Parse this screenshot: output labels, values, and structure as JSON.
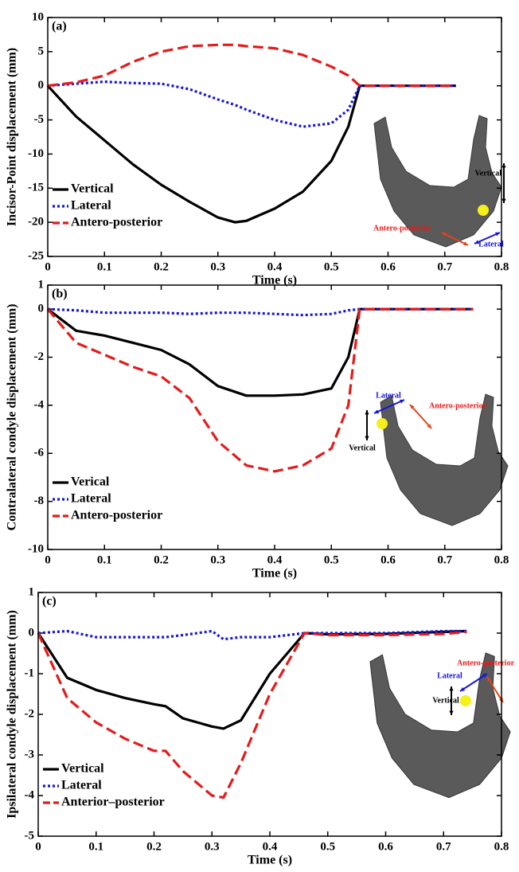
{
  "chart_data": [
    {
      "type": "line",
      "label": "(a)",
      "xlabel": "Time (s)",
      "ylabel": "Incisor-Point displacement (mm)",
      "xlim": [
        0,
        0.8
      ],
      "ylim": [
        -25,
        10
      ],
      "xticks": [
        0,
        0.1,
        0.2,
        0.3,
        0.4,
        0.5,
        0.6,
        0.7,
        0.8
      ],
      "yticks": [
        10,
        5,
        0,
        -5,
        -10,
        -15,
        -20,
        -25
      ],
      "x": [
        0,
        0.05,
        0.1,
        0.15,
        0.2,
        0.25,
        0.3,
        0.33,
        0.35,
        0.4,
        0.45,
        0.5,
        0.53,
        0.55,
        0.6,
        0.65,
        0.7,
        0.72
      ],
      "series": [
        {
          "name": "Vertical",
          "color": "#000000",
          "dash": "solid",
          "values": [
            0,
            -4.5,
            -8,
            -11.5,
            -14.5,
            -17,
            -19.3,
            -20,
            -19.8,
            -18,
            -15.5,
            -11,
            -6,
            0,
            0,
            0,
            0,
            0
          ]
        },
        {
          "name": "Lateral",
          "color": "#1515e0",
          "dash": "dotted",
          "values": [
            0,
            0.3,
            0.6,
            0.4,
            0.3,
            -0.5,
            -2,
            -2.8,
            -3.5,
            -5,
            -6,
            -5.5,
            -3.5,
            0,
            0,
            0,
            0,
            0
          ]
        },
        {
          "name": "Antero-posterior",
          "color": "#e51b1b",
          "dash": "dashed",
          "values": [
            0,
            0.5,
            1.5,
            3.5,
            5,
            5.8,
            6,
            6,
            5.8,
            5.5,
            4.5,
            2.8,
            1.5,
            0,
            0,
            0,
            0,
            0
          ]
        }
      ],
      "annotations": [
        {
          "text": "Vertical",
          "color": "#000000"
        },
        {
          "text": "Antero-posterior",
          "color": "#e51b1b"
        },
        {
          "text": "Lateral",
          "color": "#1515e0"
        }
      ]
    },
    {
      "type": "line",
      "label": "(b)",
      "xlabel": "Time (s)",
      "ylabel": "Contralateral condyle displacement (mm)",
      "xlim": [
        0,
        0.8
      ],
      "ylim": [
        -10,
        1
      ],
      "xticks": [
        0,
        0.1,
        0.2,
        0.3,
        0.4,
        0.5,
        0.6,
        0.7,
        0.8
      ],
      "yticks": [
        1,
        0,
        -2,
        -4,
        -6,
        -8,
        -10
      ],
      "x": [
        0,
        0.05,
        0.1,
        0.15,
        0.2,
        0.25,
        0.3,
        0.35,
        0.4,
        0.45,
        0.5,
        0.53,
        0.55,
        0.6,
        0.65,
        0.7,
        0.75
      ],
      "series": [
        {
          "name": "Verical",
          "color": "#000000",
          "dash": "solid",
          "values": [
            0,
            -0.9,
            -1.1,
            -1.4,
            -1.7,
            -2.3,
            -3.2,
            -3.6,
            -3.6,
            -3.55,
            -3.3,
            -2,
            0,
            0,
            0,
            0,
            0
          ]
        },
        {
          "name": "Lateral",
          "color": "#1515e0",
          "dash": "dotted",
          "values": [
            0,
            -0.05,
            -0.15,
            -0.15,
            -0.15,
            -0.2,
            -0.15,
            -0.15,
            -0.2,
            -0.25,
            -0.2,
            -0.05,
            0,
            0,
            0,
            0,
            0
          ]
        },
        {
          "name": "Antero-posterior",
          "color": "#e51b1b",
          "dash": "dashed",
          "values": [
            0,
            -1.4,
            -1.9,
            -2.4,
            -2.8,
            -3.7,
            -5.5,
            -6.5,
            -6.75,
            -6.5,
            -5.8,
            -4,
            0,
            0,
            0,
            0,
            0
          ]
        }
      ],
      "annotations": [
        {
          "text": "Lateral",
          "color": "#1515e0"
        },
        {
          "text": "Antero-posterior",
          "color": "#e51b1b"
        },
        {
          "text": "Vertical",
          "color": "#000000"
        }
      ]
    },
    {
      "type": "line",
      "label": "(c)",
      "xlabel": "Time (s)",
      "ylabel": "Ipsilateral condyle displacement (mm)",
      "xlim": [
        0,
        0.8
      ],
      "ylim": [
        -5,
        1
      ],
      "xticks": [
        0,
        0.1,
        0.2,
        0.3,
        0.4,
        0.5,
        0.6,
        0.7,
        0.8
      ],
      "yticks": [
        1,
        0,
        -1,
        -2,
        -3,
        -4,
        -5
      ],
      "x": [
        0,
        0.05,
        0.1,
        0.15,
        0.2,
        0.22,
        0.25,
        0.3,
        0.32,
        0.35,
        0.4,
        0.46,
        0.5,
        0.6,
        0.7,
        0.74
      ],
      "series": [
        {
          "name": "Vertical",
          "color": "#000000",
          "dash": "solid",
          "values": [
            0,
            -1.1,
            -1.4,
            -1.6,
            -1.75,
            -1.8,
            -2.1,
            -2.3,
            -2.35,
            -2.15,
            -1.0,
            0,
            -0.03,
            -0.02,
            0.03,
            0.05
          ]
        },
        {
          "name": "Lateral",
          "color": "#1515e0",
          "dash": "dotted",
          "values": [
            0,
            0.05,
            -0.1,
            -0.1,
            -0.1,
            -0.1,
            -0.05,
            0.05,
            -0.15,
            -0.1,
            -0.1,
            0,
            0,
            0,
            0.05,
            0.05
          ]
        },
        {
          "name": "Anterior–posterior",
          "color": "#e51b1b",
          "dash": "dashed",
          "values": [
            0,
            -1.6,
            -2.2,
            -2.6,
            -2.9,
            -2.9,
            -3.4,
            -4.0,
            -4.05,
            -3.2,
            -1.5,
            0,
            -0.05,
            -0.05,
            -0.02,
            0.03
          ]
        }
      ],
      "annotations": [
        {
          "text": "Antero-posterior",
          "color": "#e51b1b"
        },
        {
          "text": "Lateral",
          "color": "#1515e0"
        },
        {
          "text": "Vertical",
          "color": "#000000"
        }
      ]
    }
  ]
}
